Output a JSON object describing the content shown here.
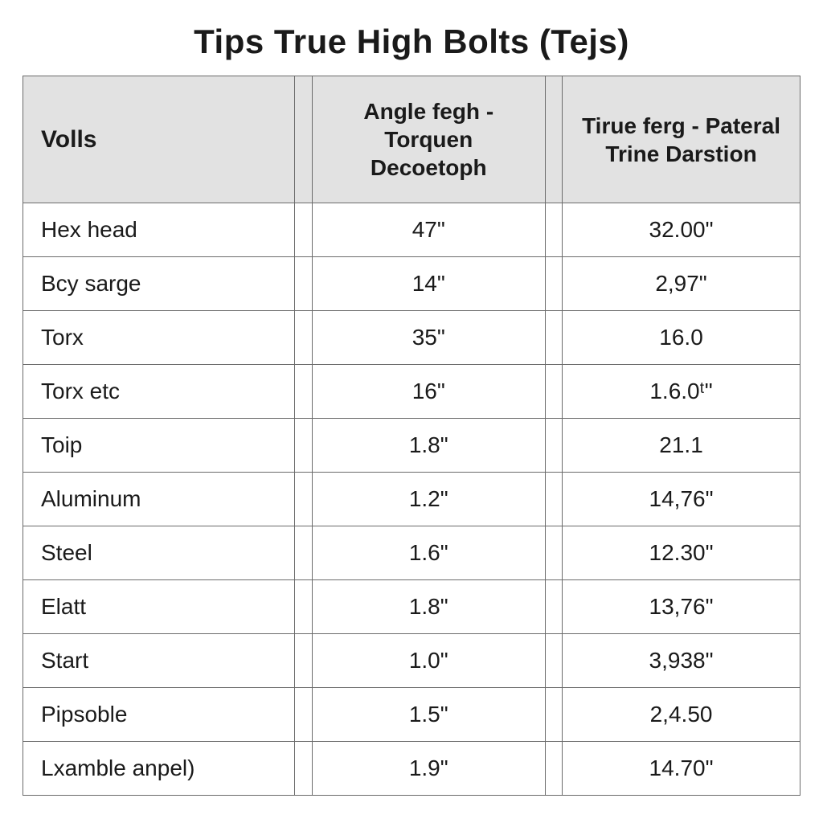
{
  "title": "Tips True High Bolts (Tejs)",
  "table": {
    "type": "table",
    "background_color": "#ffffff",
    "border_color": "#6b6b6b",
    "header_background": "#e2e2e2",
    "text_color": "#1a1a1a",
    "title_fontsize": 42,
    "header_fontsize": 28,
    "cell_fontsize": 28,
    "column_widths_pct": [
      35,
      2.2,
      30,
      2.2,
      30.6
    ],
    "columns": [
      {
        "key": "label",
        "header": "Volls",
        "align": "left"
      },
      {
        "key": "angle",
        "header": "Angle fegh - Torquen Decoetoph",
        "align": "center"
      },
      {
        "key": "trine",
        "header": "Tirue ferg - Pateral Trine Darstion",
        "align": "center"
      }
    ],
    "rows": [
      {
        "label": "Hex head",
        "angle": "47\"",
        "trine": "32.00\""
      },
      {
        "label": "Bcy sarge",
        "angle": "14\"",
        "trine": "2,97\""
      },
      {
        "label": "Torx",
        "angle": "35\"",
        "trine": "16.0"
      },
      {
        "label": "Torx etc",
        "angle": "16\"",
        "trine": "1.6.0ᵗ\""
      },
      {
        "label": "Toip",
        "angle": "1.8\"",
        "trine": "21.1"
      },
      {
        "label": "Aluminum",
        "angle": "1.2\"",
        "trine": "14,76\""
      },
      {
        "label": "Steel",
        "angle": "1.6\"",
        "trine": "12.30\""
      },
      {
        "label": "Elatt",
        "angle": "1.8\"",
        "trine": "13,76\""
      },
      {
        "label": "Start",
        "angle": "1.0\"",
        "trine": "3,938\""
      },
      {
        "label": "Pipsoble",
        "angle": "1.5\"",
        "trine": "2,4.50"
      },
      {
        "label": "Lxamble anpel)",
        "angle": "1.9\"",
        "trine": "14.70\""
      }
    ]
  }
}
